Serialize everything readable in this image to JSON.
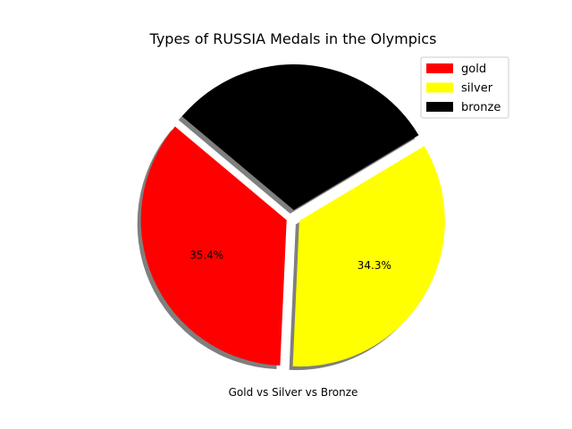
{
  "chart_data": {
    "type": "pie",
    "title": "Types of RUSSIA Medals in the Olympics",
    "xlabel": "Gold vs Silver vs Bronze",
    "slices": [
      {
        "label": "gold",
        "value": 35.4,
        "display": "35.4%",
        "color": "#ff0000"
      },
      {
        "label": "silver",
        "value": 34.3,
        "display": "34.3%",
        "color": "#ffff00"
      },
      {
        "label": "bronze",
        "value": 30.3,
        "display": "",
        "color": "#000000"
      }
    ],
    "shadow": true,
    "exploded": true,
    "legend_position": "top-right"
  }
}
